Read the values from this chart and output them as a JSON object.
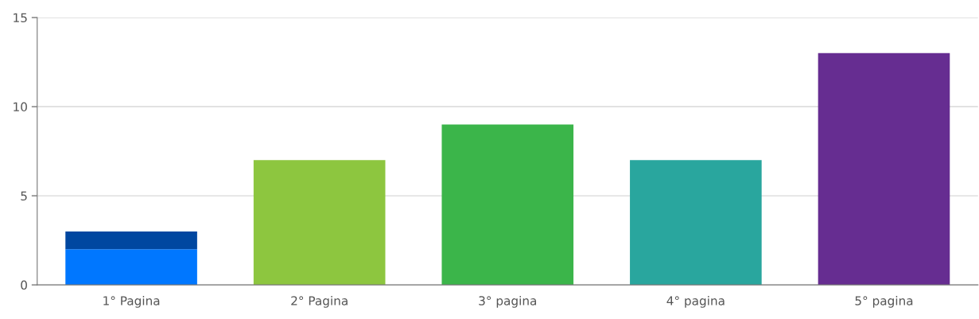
{
  "chart_data": {
    "type": "bar",
    "stacked": true,
    "categories": [
      "1° Pagina",
      "2° Pagina",
      "3° pagina",
      "4° pagina",
      "5° pagina"
    ],
    "series": [
      {
        "values": [
          2,
          7,
          9,
          7,
          13
        ],
        "colors": [
          "#0077ff",
          "#8dc63f",
          "#3bb54a",
          "#29a69e",
          "#662d91"
        ]
      },
      {
        "values": [
          1,
          null,
          null,
          null,
          null
        ],
        "color": "#0047a0"
      }
    ],
    "ylim": [
      0,
      15
    ],
    "yticks": [
      0,
      5,
      10,
      15
    ],
    "grid": "y",
    "legend": false
  }
}
